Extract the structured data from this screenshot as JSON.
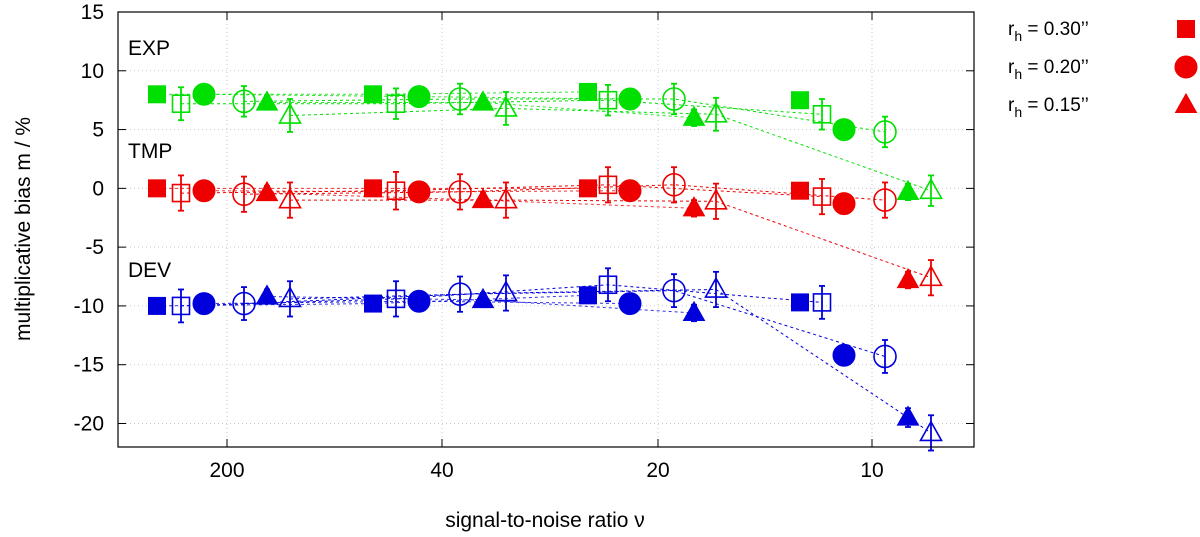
{
  "chart_data": {
    "type": "scatter",
    "title": "",
    "xlabel": "signal-to-noise ratio ν",
    "ylabel": "multiplicative bias m / %",
    "ylim": [
      -22,
      15
    ],
    "yticks": [
      15,
      10,
      5,
      0,
      -5,
      -10,
      -15,
      -20
    ],
    "xticks": [
      "200",
      "40",
      "20",
      "10"
    ],
    "grid": true,
    "model_labels": [
      "EXP",
      "TMP",
      "DEV"
    ],
    "legend": [
      {
        "label": "r",
        "sub": "h",
        "rest": " = 0.30’’",
        "marker": "square"
      },
      {
        "label": "r",
        "sub": "h",
        "rest": " = 0.20’’",
        "marker": "circle"
      },
      {
        "label": "r",
        "sub": "h",
        "rest": " = 0.15’’",
        "marker": "triangle"
      }
    ],
    "colors": {
      "EXP": "#00e000",
      "TMP": "#ee0000",
      "DEV": "#0000dd"
    },
    "series": [
      {
        "name": "EXP filled",
        "model": "EXP",
        "filled": true,
        "points": [
          {
            "marker": "square",
            "col": 0,
            "y": 8.0,
            "err": 0.5
          },
          {
            "marker": "circle",
            "col": 1,
            "y": 8.0,
            "err": 0.4
          },
          {
            "marker": "triangle",
            "col": 2,
            "y": 7.3,
            "err": 0.6
          },
          {
            "marker": "square",
            "col": 3,
            "y": 8.0,
            "err": 0.5
          },
          {
            "marker": "circle",
            "col": 4,
            "y": 7.8,
            "err": 0.5
          },
          {
            "marker": "triangle",
            "col": 5,
            "y": 7.3,
            "err": 0.6
          },
          {
            "marker": "square",
            "col": 6,
            "y": 8.2,
            "err": 0.6
          },
          {
            "marker": "circle",
            "col": 7,
            "y": 7.6,
            "err": 0.5
          },
          {
            "marker": "triangle",
            "col": 8,
            "y": 6.0,
            "err": 0.7
          },
          {
            "marker": "square",
            "col": 9,
            "y": 7.5,
            "err": 0.5
          },
          {
            "marker": "circle",
            "col": 10,
            "y": 5.0,
            "err": 0.5
          },
          {
            "marker": "triangle",
            "col": 11,
            "y": -0.3,
            "err": 0.7
          }
        ]
      },
      {
        "name": "EXP open",
        "model": "EXP",
        "filled": false,
        "points": [
          {
            "marker": "square",
            "col": 0,
            "y": 7.2,
            "err": 1.4
          },
          {
            "marker": "circle",
            "col": 1,
            "y": 7.4,
            "err": 1.3
          },
          {
            "marker": "triangle",
            "col": 2,
            "y": 6.2,
            "err": 1.4
          },
          {
            "marker": "square",
            "col": 3,
            "y": 7.2,
            "err": 1.3
          },
          {
            "marker": "circle",
            "col": 4,
            "y": 7.6,
            "err": 1.3
          },
          {
            "marker": "triangle",
            "col": 5,
            "y": 6.8,
            "err": 1.4
          },
          {
            "marker": "square",
            "col": 6,
            "y": 7.5,
            "err": 1.3
          },
          {
            "marker": "circle",
            "col": 7,
            "y": 7.6,
            "err": 1.3
          },
          {
            "marker": "triangle",
            "col": 8,
            "y": 6.3,
            "err": 1.4
          },
          {
            "marker": "square",
            "col": 9,
            "y": 6.3,
            "err": 1.3
          },
          {
            "marker": "circle",
            "col": 10,
            "y": 4.8,
            "err": 1.3
          },
          {
            "marker": "triangle",
            "col": 11,
            "y": -0.2,
            "err": 1.3
          }
        ]
      },
      {
        "name": "TMP filled",
        "model": "TMP",
        "filled": true,
        "points": [
          {
            "marker": "square",
            "col": 0,
            "y": 0.0,
            "err": 0.4
          },
          {
            "marker": "circle",
            "col": 1,
            "y": -0.2,
            "err": 0.4
          },
          {
            "marker": "triangle",
            "col": 2,
            "y": -0.4,
            "err": 0.6
          },
          {
            "marker": "square",
            "col": 3,
            "y": 0.0,
            "err": 0.4
          },
          {
            "marker": "circle",
            "col": 4,
            "y": -0.3,
            "err": 0.5
          },
          {
            "marker": "triangle",
            "col": 5,
            "y": -1.0,
            "err": 0.6
          },
          {
            "marker": "square",
            "col": 6,
            "y": 0.0,
            "err": 0.4
          },
          {
            "marker": "circle",
            "col": 7,
            "y": -0.2,
            "err": 0.5
          },
          {
            "marker": "triangle",
            "col": 8,
            "y": -1.7,
            "err": 0.7
          },
          {
            "marker": "square",
            "col": 9,
            "y": -0.2,
            "err": 0.4
          },
          {
            "marker": "circle",
            "col": 10,
            "y": -1.3,
            "err": 0.5
          },
          {
            "marker": "triangle",
            "col": 11,
            "y": -7.8,
            "err": 0.7
          }
        ]
      },
      {
        "name": "TMP open",
        "model": "TMP",
        "filled": false,
        "points": [
          {
            "marker": "square",
            "col": 0,
            "y": -0.4,
            "err": 1.5
          },
          {
            "marker": "circle",
            "col": 1,
            "y": -0.5,
            "err": 1.5
          },
          {
            "marker": "triangle",
            "col": 2,
            "y": -1.0,
            "err": 1.5
          },
          {
            "marker": "square",
            "col": 3,
            "y": -0.2,
            "err": 1.6
          },
          {
            "marker": "circle",
            "col": 4,
            "y": -0.3,
            "err": 1.5
          },
          {
            "marker": "triangle",
            "col": 5,
            "y": -1.0,
            "err": 1.5
          },
          {
            "marker": "square",
            "col": 6,
            "y": 0.3,
            "err": 1.5
          },
          {
            "marker": "circle",
            "col": 7,
            "y": 0.3,
            "err": 1.5
          },
          {
            "marker": "triangle",
            "col": 8,
            "y": -1.1,
            "err": 1.5
          },
          {
            "marker": "square",
            "col": 9,
            "y": -0.7,
            "err": 1.5
          },
          {
            "marker": "circle",
            "col": 10,
            "y": -1.0,
            "err": 1.5
          },
          {
            "marker": "triangle",
            "col": 11,
            "y": -7.6,
            "err": 1.5
          }
        ]
      },
      {
        "name": "DEV filled",
        "model": "DEV",
        "filled": true,
        "points": [
          {
            "marker": "square",
            "col": 0,
            "y": -10.0,
            "err": 0.4
          },
          {
            "marker": "circle",
            "col": 1,
            "y": -9.8,
            "err": 0.4
          },
          {
            "marker": "triangle",
            "col": 2,
            "y": -9.2,
            "err": 0.6
          },
          {
            "marker": "square",
            "col": 3,
            "y": -9.8,
            "err": 0.4
          },
          {
            "marker": "circle",
            "col": 4,
            "y": -9.6,
            "err": 0.5
          },
          {
            "marker": "triangle",
            "col": 5,
            "y": -9.5,
            "err": 0.6
          },
          {
            "marker": "square",
            "col": 6,
            "y": -9.1,
            "err": 0.5
          },
          {
            "marker": "circle",
            "col": 7,
            "y": -9.8,
            "err": 0.5
          },
          {
            "marker": "triangle",
            "col": 8,
            "y": -10.6,
            "err": 0.7
          },
          {
            "marker": "square",
            "col": 9,
            "y": -9.7,
            "err": 0.4
          },
          {
            "marker": "circle",
            "col": 10,
            "y": -14.2,
            "err": 0.6
          },
          {
            "marker": "triangle",
            "col": 11,
            "y": -19.5,
            "err": 0.8
          }
        ]
      },
      {
        "name": "DEV open",
        "model": "DEV",
        "filled": false,
        "points": [
          {
            "marker": "square",
            "col": 0,
            "y": -10.0,
            "err": 1.4
          },
          {
            "marker": "circle",
            "col": 1,
            "y": -9.8,
            "err": 1.4
          },
          {
            "marker": "triangle",
            "col": 2,
            "y": -9.4,
            "err": 1.5
          },
          {
            "marker": "square",
            "col": 3,
            "y": -9.4,
            "err": 1.5
          },
          {
            "marker": "circle",
            "col": 4,
            "y": -9.0,
            "err": 1.5
          },
          {
            "marker": "triangle",
            "col": 5,
            "y": -8.9,
            "err": 1.5
          },
          {
            "marker": "square",
            "col": 6,
            "y": -8.2,
            "err": 1.4
          },
          {
            "marker": "circle",
            "col": 7,
            "y": -8.7,
            "err": 1.4
          },
          {
            "marker": "triangle",
            "col": 8,
            "y": -8.6,
            "err": 1.5
          },
          {
            "marker": "square",
            "col": 9,
            "y": -9.7,
            "err": 1.4
          },
          {
            "marker": "circle",
            "col": 10,
            "y": -14.3,
            "err": 1.4
          },
          {
            "marker": "triangle",
            "col": 11,
            "y": -20.8,
            "err": 1.5
          }
        ]
      }
    ]
  }
}
